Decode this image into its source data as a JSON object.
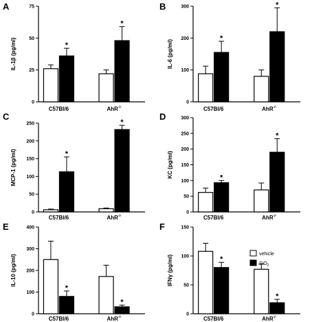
{
  "figure": {
    "legend": [
      {
        "label": "vehicle",
        "sub": "",
        "color": "#ffffff"
      },
      {
        "label": "SiO",
        "sub": "2",
        "color": "#000000"
      }
    ]
  },
  "chart_data": [
    {
      "panel": "A",
      "type": "bar",
      "ylabel": "IL-1β (pg/ml)",
      "ylim": [
        0,
        75
      ],
      "yticks": [
        0,
        25,
        50,
        75
      ],
      "categories": [
        {
          "name": "C57Bl/6",
          "sup": ""
        },
        {
          "name": "AhR",
          "sup": "-/-"
        }
      ],
      "series": [
        {
          "name": "vehicle",
          "values": [
            26,
            22
          ],
          "errors": [
            3,
            3
          ],
          "significant": [
            false,
            false
          ]
        },
        {
          "name": "SiO2",
          "values": [
            36,
            48
          ],
          "errors": [
            6,
            11
          ],
          "significant": [
            true,
            true
          ]
        }
      ]
    },
    {
      "panel": "B",
      "type": "bar",
      "ylabel": "IL-6 (pg/ml)",
      "ylim": [
        0,
        300
      ],
      "yticks": [
        0,
        100,
        200,
        300
      ],
      "categories": [
        {
          "name": "C57Bl/6",
          "sup": ""
        },
        {
          "name": "AhR",
          "sup": "-/-"
        }
      ],
      "series": [
        {
          "name": "vehicle",
          "values": [
            88,
            80
          ],
          "errors": [
            24,
            20
          ],
          "significant": [
            false,
            false
          ]
        },
        {
          "name": "SiO2",
          "values": [
            155,
            220
          ],
          "errors": [
            35,
            75
          ],
          "significant": [
            true,
            true
          ]
        }
      ]
    },
    {
      "panel": "C",
      "type": "bar",
      "ylabel": "MCP-1 (pg/ml)",
      "ylim": [
        0,
        250
      ],
      "yticks": [
        0,
        50,
        100,
        150,
        200,
        250
      ],
      "categories": [
        {
          "name": "C57Bl/6",
          "sup": ""
        },
        {
          "name": "AhR",
          "sup": "-/-"
        }
      ],
      "series": [
        {
          "name": "vehicle",
          "values": [
            6,
            9
          ],
          "errors": [
            2,
            2
          ],
          "significant": [
            false,
            false
          ]
        },
        {
          "name": "SiO2",
          "values": [
            113,
            232
          ],
          "errors": [
            42,
            12
          ],
          "significant": [
            true,
            true
          ]
        }
      ]
    },
    {
      "panel": "D",
      "type": "bar",
      "ylabel": "KC (pg/ml)",
      "ylim": [
        0,
        300
      ],
      "yticks": [
        0,
        50,
        100,
        150,
        200,
        250,
        300
      ],
      "categories": [
        {
          "name": "C57Bl/6",
          "sup": ""
        },
        {
          "name": "AhR",
          "sup": "-/-"
        }
      ],
      "series": [
        {
          "name": "vehicle",
          "values": [
            62,
            70
          ],
          "errors": [
            14,
            22
          ],
          "significant": [
            false,
            false
          ]
        },
        {
          "name": "SiO2",
          "values": [
            93,
            190
          ],
          "errors": [
            7,
            43
          ],
          "significant": [
            true,
            true
          ]
        }
      ]
    },
    {
      "panel": "E",
      "type": "bar",
      "ylabel": "IL-10 (pg/ml)",
      "ylim": [
        0,
        400
      ],
      "yticks": [
        0,
        100,
        200,
        300,
        400
      ],
      "categories": [
        {
          "name": "C57Bl/6",
          "sup": ""
        },
        {
          "name": "AhR",
          "sup": "-/-"
        }
      ],
      "series": [
        {
          "name": "vehicle",
          "values": [
            250,
            172
          ],
          "errors": [
            85,
            52
          ],
          "significant": [
            false,
            false
          ]
        },
        {
          "name": "SiO2",
          "values": [
            80,
            32
          ],
          "errors": [
            25,
            8
          ],
          "significant": [
            true,
            true
          ]
        }
      ]
    },
    {
      "panel": "F",
      "type": "bar",
      "ylabel": "IFNγ (pg/ml)",
      "ylim": [
        0,
        150
      ],
      "yticks": [
        0,
        50,
        100,
        150
      ],
      "categories": [
        {
          "name": "C57Bl/6",
          "sup": ""
        },
        {
          "name": "AhR",
          "sup": "-/-"
        }
      ],
      "series": [
        {
          "name": "vehicle",
          "values": [
            108,
            77
          ],
          "errors": [
            14,
            9
          ],
          "significant": [
            false,
            false
          ]
        },
        {
          "name": "SiO2",
          "values": [
            80,
            19
          ],
          "errors": [
            9,
            6
          ],
          "significant": [
            true,
            true
          ]
        }
      ]
    }
  ]
}
